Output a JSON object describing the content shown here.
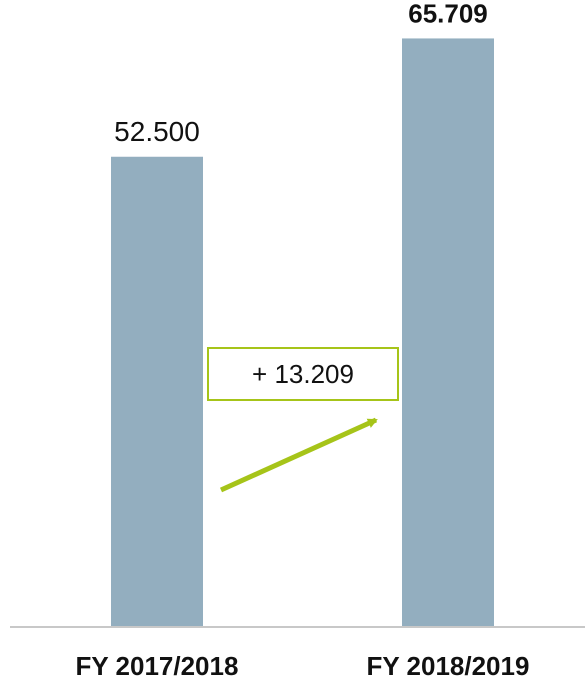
{
  "chart_data": {
    "type": "bar",
    "categories": [
      "FY 2017/2018",
      "FY 2018/2019"
    ],
    "values": [
      52500,
      65709
    ],
    "value_labels": [
      "52.500",
      "65.709"
    ],
    "highlighted_value_index": 1,
    "ylim": [
      0,
      70000
    ],
    "grid": false,
    "title": "",
    "xlabel": "",
    "ylabel": "",
    "annotation": {
      "text": "+ 13.209",
      "type": "change-callout-with-arrow"
    },
    "colors": {
      "bar": "#93aebf",
      "accent": "#a6c419",
      "axis": "#c8c8c8",
      "text": "#111111"
    }
  }
}
